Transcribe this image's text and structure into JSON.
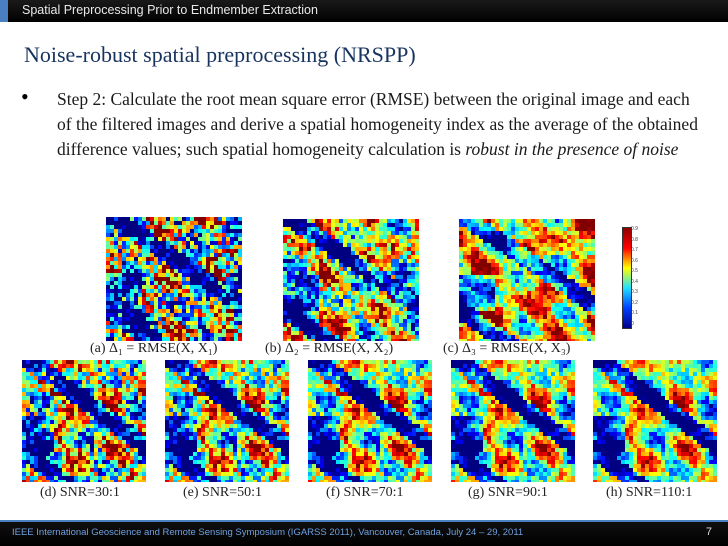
{
  "header": {
    "title": "Spatial Preprocessing Prior to Endmember Extraction"
  },
  "slide": {
    "heading": "Noise-robust spatial preprocessing (NRSPP)",
    "bullet_symbol": "•",
    "bullet_text_main": "Step 2: Calculate the root mean square error (RMSE) between the original image and each of the filtered images and derive a spatial homogeneity index as the average of the obtained difference values; such spatial homogeneity calculation is ",
    "bullet_text_emph": "robust in the presence of noise"
  },
  "figures": {
    "top": [
      {
        "caption": "(a) Δ₁ = RMSE(X, X₁)"
      },
      {
        "caption": "(b) Δ₂ = RMSE(X, X₂)"
      },
      {
        "caption": "(c) Δ₃ = RMSE(X, X₃)"
      }
    ],
    "bottom": [
      {
        "caption": "(d) SNR=30:1"
      },
      {
        "caption": "(e) SNR=50:1"
      },
      {
        "caption": "(f) SNR=70:1"
      },
      {
        "caption": "(g) SNR=90:1"
      },
      {
        "caption": "(h) SNR=110:1"
      }
    ],
    "colorbar_ticks": [
      "0.9",
      "0.8",
      "0.7",
      "0.6",
      "0.5",
      "0.4",
      "0.3",
      "0.2",
      "0.1",
      "0"
    ]
  },
  "footer": {
    "text": "IEEE International Geoscience and Remote Sensing Symposium (IGARSS 2011), Vancouver, Canada, July 24 – 29, 2011",
    "page": "7"
  }
}
